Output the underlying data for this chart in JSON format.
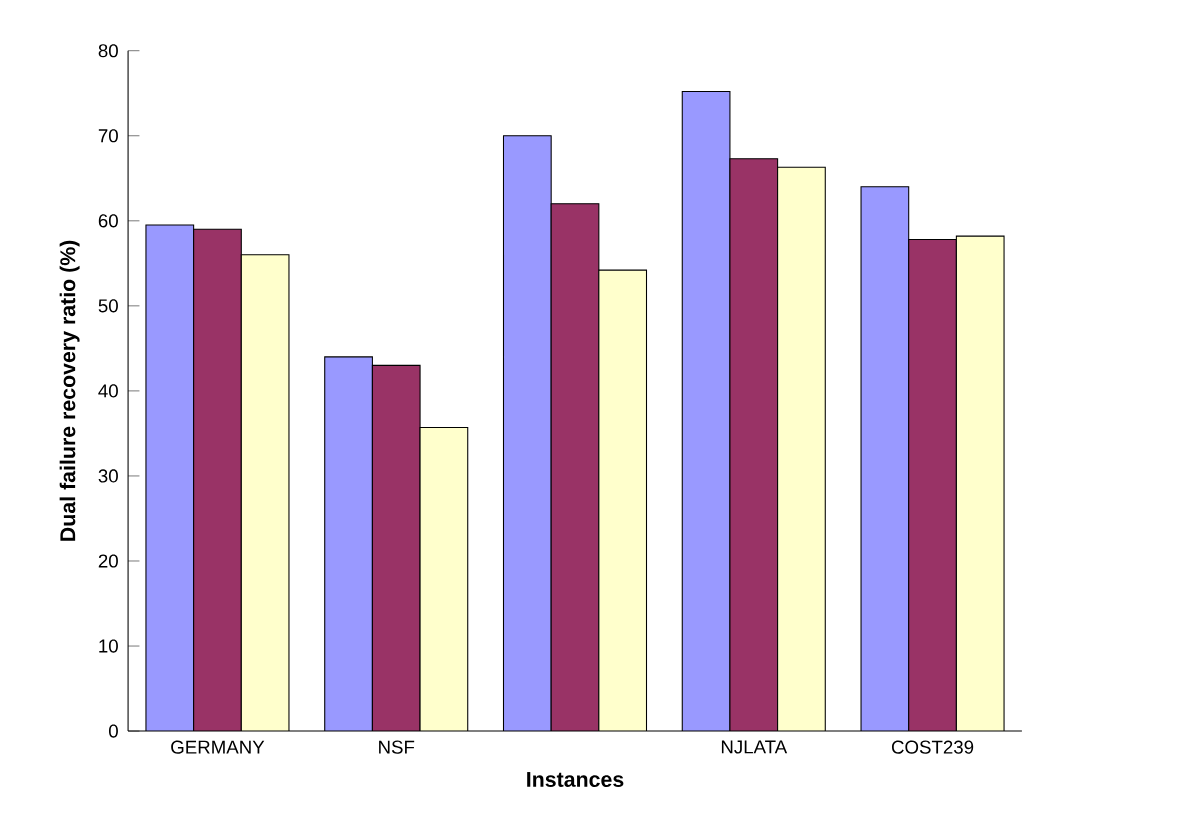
{
  "chart_data": {
    "type": "bar",
    "xlabel": "Instances",
    "ylabel": "Dual failure recovery ratio (%)",
    "categories": [
      "GERMANY",
      "NSF",
      null,
      "NJLATA",
      "COST239"
    ],
    "series": [
      {
        "color": "#9999ff",
        "values": [
          59.5,
          44,
          70,
          75.2,
          64
        ]
      },
      {
        "color": "#993366",
        "values": [
          59,
          43,
          62,
          67.3,
          57.8
        ]
      },
      {
        "color": "#ffffcc",
        "values": [
          56,
          35.7,
          54.2,
          66.3,
          58.2
        ]
      }
    ],
    "ylim": [
      0,
      80
    ],
    "yticks": [
      0,
      10,
      20,
      30,
      40,
      50,
      60,
      70,
      80
    ]
  }
}
